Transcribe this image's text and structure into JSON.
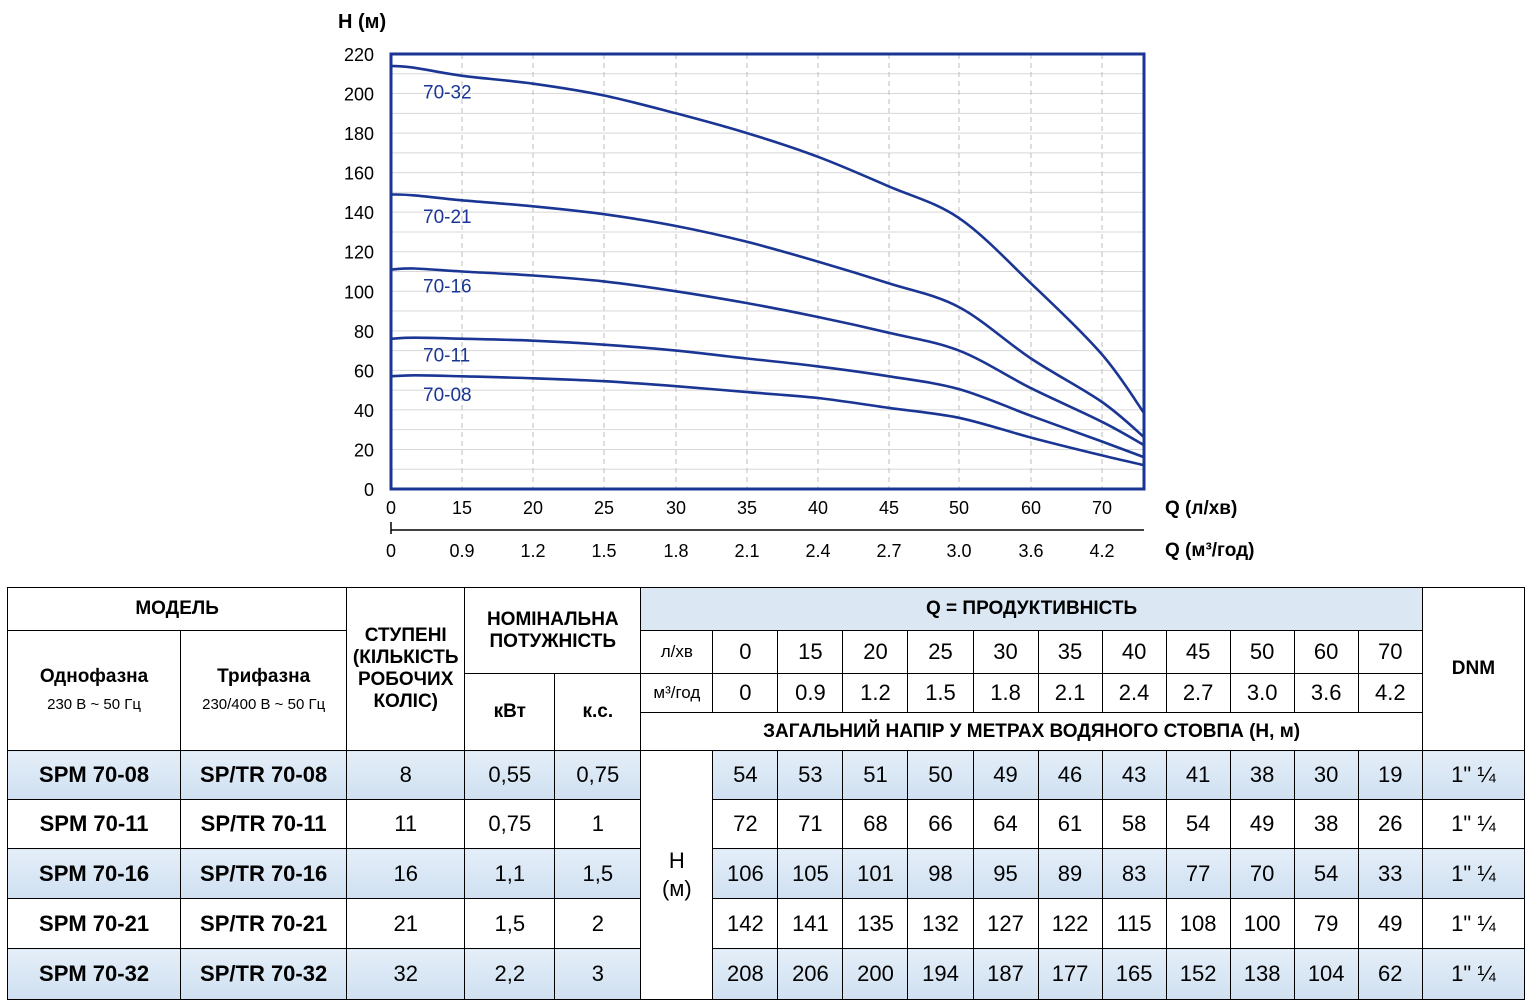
{
  "chart_data": {
    "type": "line",
    "title": "",
    "ylabel": "H (м)",
    "xlabel": "Q (л/хв)",
    "xlabel2": "Q (м³/год)",
    "xlim": [
      0,
      75
    ],
    "ylim": [
      0,
      220
    ],
    "yticks": [
      0,
      20,
      40,
      60,
      80,
      100,
      120,
      140,
      160,
      180,
      200,
      220
    ],
    "xticks": [
      0,
      15,
      20,
      25,
      30,
      35,
      40,
      45,
      50,
      60,
      70
    ],
    "xticks2": [
      "0",
      "0.9",
      "1.2",
      "1.5",
      "1.8",
      "2.1",
      "2.4",
      "2.7",
      "3.0",
      "3.6",
      "4.2"
    ],
    "grid": true,
    "line_color": "#1a3593",
    "label_color": "#1a3593",
    "series": [
      {
        "name": "70-08",
        "label_y": 48,
        "points": [
          [
            0,
            57
          ],
          [
            5,
            57.5
          ],
          [
            15,
            57
          ],
          [
            20,
            56
          ],
          [
            25,
            54.5
          ],
          [
            30,
            52
          ],
          [
            35,
            49
          ],
          [
            40,
            46
          ],
          [
            45,
            41
          ],
          [
            50,
            36
          ],
          [
            60,
            26
          ],
          [
            70,
            17
          ],
          [
            76,
            12
          ]
        ]
      },
      {
        "name": "70-11",
        "label_y": 68,
        "points": [
          [
            0,
            76
          ],
          [
            5,
            76.5
          ],
          [
            15,
            76
          ],
          [
            20,
            75
          ],
          [
            25,
            73
          ],
          [
            30,
            70
          ],
          [
            35,
            66
          ],
          [
            40,
            62
          ],
          [
            45,
            57
          ],
          [
            50,
            50.5
          ],
          [
            60,
            37
          ],
          [
            70,
            24
          ],
          [
            76,
            16
          ]
        ]
      },
      {
        "name": "70-16",
        "label_y": 103,
        "points": [
          [
            0,
            111
          ],
          [
            5,
            111.5
          ],
          [
            15,
            110
          ],
          [
            20,
            108
          ],
          [
            25,
            105
          ],
          [
            30,
            100
          ],
          [
            35,
            94
          ],
          [
            40,
            87
          ],
          [
            45,
            79
          ],
          [
            50,
            70
          ],
          [
            60,
            51
          ],
          [
            70,
            34
          ],
          [
            76,
            22
          ]
        ]
      },
      {
        "name": "70-21",
        "label_y": 138,
        "points": [
          [
            0,
            149
          ],
          [
            5,
            148.5
          ],
          [
            15,
            146
          ],
          [
            20,
            143
          ],
          [
            25,
            139
          ],
          [
            30,
            133
          ],
          [
            35,
            125
          ],
          [
            40,
            115
          ],
          [
            45,
            104
          ],
          [
            50,
            92
          ],
          [
            60,
            66
          ],
          [
            70,
            44
          ],
          [
            76,
            26
          ]
        ]
      },
      {
        "name": "70-32",
        "label_y": 201,
        "points": [
          [
            0,
            214
          ],
          [
            5,
            213
          ],
          [
            15,
            209
          ],
          [
            20,
            205
          ],
          [
            25,
            199
          ],
          [
            30,
            190
          ],
          [
            35,
            180
          ],
          [
            40,
            168
          ],
          [
            45,
            153
          ],
          [
            50,
            137
          ],
          [
            60,
            104
          ],
          [
            70,
            68
          ],
          [
            76,
            38
          ]
        ]
      }
    ]
  },
  "table": {
    "model_header": "МОДЕЛЬ",
    "single_phase": "Однофазна",
    "single_phase_sub": "230 В ~ 50 Гц",
    "three_phase": "Трифазна",
    "three_phase_sub": "230/400 В ~ 50 Гц",
    "stages_line1": "СТУПЕНІ",
    "stages_line2": "(КІЛЬКІСТЬ",
    "stages_line3": "РОБОЧИХ",
    "stages_line4": "КОЛІС)",
    "power_line1": "НОМІНАЛЬНА",
    "power_line2": "ПОТУЖНІСТЬ",
    "kw": "кВт",
    "hp": "к.с.",
    "q_header": "Q = ПРОДУКТИВНІСТЬ",
    "unit_lpm": "л/хв",
    "unit_m3h": "м³/год",
    "q_lpm": [
      "0",
      "15",
      "20",
      "25",
      "30",
      "35",
      "40",
      "45",
      "50",
      "60",
      "70"
    ],
    "q_m3h": [
      "0",
      "0.9",
      "1.2",
      "1.5",
      "1.8",
      "2.1",
      "2.4",
      "2.7",
      "3.0",
      "3.6",
      "4.2"
    ],
    "head_header": "ЗАГАЛЬНИЙ НАПІР У МЕТРАХ ВОДЯНОГО СТОВПА (Н, м)",
    "dnm": "DNM",
    "h_label_1": "H",
    "h_label_2": "(м)",
    "rows": [
      {
        "spm": "SPM 70-08",
        "sptr": "SP/TR 70-08",
        "stages": "8",
        "kw": "0,55",
        "hp": "0,75",
        "head": [
          "54",
          "53",
          "51",
          "50",
          "49",
          "46",
          "43",
          "41",
          "38",
          "30",
          "19"
        ],
        "dnm": "1\" ¼"
      },
      {
        "spm": "SPM 70-11",
        "sptr": "SP/TR 70-11",
        "stages": "11",
        "kw": "0,75",
        "hp": "1",
        "head": [
          "72",
          "71",
          "68",
          "66",
          "64",
          "61",
          "58",
          "54",
          "49",
          "38",
          "26"
        ],
        "dnm": "1\" ¼"
      },
      {
        "spm": "SPM 70-16",
        "sptr": "SP/TR 70-16",
        "stages": "16",
        "kw": "1,1",
        "hp": "1,5",
        "head": [
          "106",
          "105",
          "101",
          "98",
          "95",
          "89",
          "83",
          "77",
          "70",
          "54",
          "33"
        ],
        "dnm": "1\" ¼"
      },
      {
        "spm": "SPM 70-21",
        "sptr": "SP/TR 70-21",
        "stages": "21",
        "kw": "1,5",
        "hp": "2",
        "head": [
          "142",
          "141",
          "135",
          "132",
          "127",
          "122",
          "115",
          "108",
          "100",
          "79",
          "49"
        ],
        "dnm": "1\" ¼"
      },
      {
        "spm": "SPM 70-32",
        "sptr": "SP/TR 70-32",
        "stages": "32",
        "kw": "2,2",
        "hp": "3",
        "head": [
          "208",
          "206",
          "200",
          "194",
          "187",
          "177",
          "165",
          "152",
          "138",
          "104",
          "62"
        ],
        "dnm": "1\" ¼"
      }
    ]
  }
}
